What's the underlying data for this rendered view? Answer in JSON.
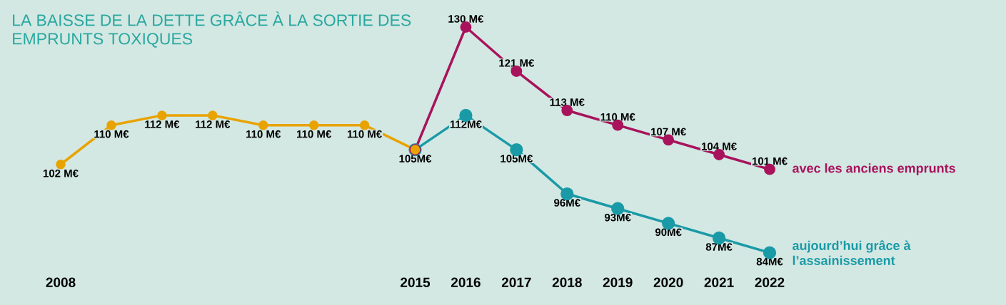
{
  "chart_data": {
    "type": "line",
    "title": "LA BAISSE DE LA DETTE GRÂCE À LA SORTIE DES EMPRUNTS TOXIQUES",
    "xlim": [
      2008,
      2022
    ],
    "xticks": [
      2008,
      2015,
      2016,
      2017,
      2018,
      2019,
      2020,
      2021,
      2022
    ],
    "tick_labels": "x",
    "grid": false,
    "legend": false,
    "marker": "circle",
    "line_style": "solid",
    "series": [
      {
        "color": "#e8a300",
        "x": [
          2008,
          2009,
          2010,
          2011,
          2012,
          2013,
          2014,
          2015
        ],
        "values": [
          102,
          110,
          112,
          112,
          110,
          110,
          110,
          105
        ],
        "value_labels": [
          "102 M€",
          "110 M€",
          "112 M€",
          "112 M€",
          "110 M€",
          "110 M€",
          "110 M€",
          "105M€"
        ]
      },
      {
        "name": "avec les anciens emprunts",
        "color": "#a8135c",
        "x": [
          2015,
          2016,
          2017,
          2018,
          2019,
          2020,
          2021,
          2022
        ],
        "values": [
          105,
          130,
          121,
          113,
          110,
          107,
          104,
          101
        ],
        "value_labels": [
          null,
          "130 M€",
          "121 M€",
          "113 M€",
          "110 M€",
          "107 M€",
          "104 M€",
          "101 M€"
        ]
      },
      {
        "name": "aujourd’hui grâce à l’assainissement",
        "color": "#1a9aa6",
        "x": [
          2015,
          2016,
          2017,
          2018,
          2019,
          2020,
          2021,
          2022
        ],
        "values": [
          105,
          112,
          105,
          96,
          93,
          90,
          87,
          84
        ],
        "value_labels": [
          null,
          "112M€",
          "105M€",
          "96M€",
          "93M€",
          "90M€",
          "87M€",
          "84M€"
        ]
      }
    ]
  }
}
